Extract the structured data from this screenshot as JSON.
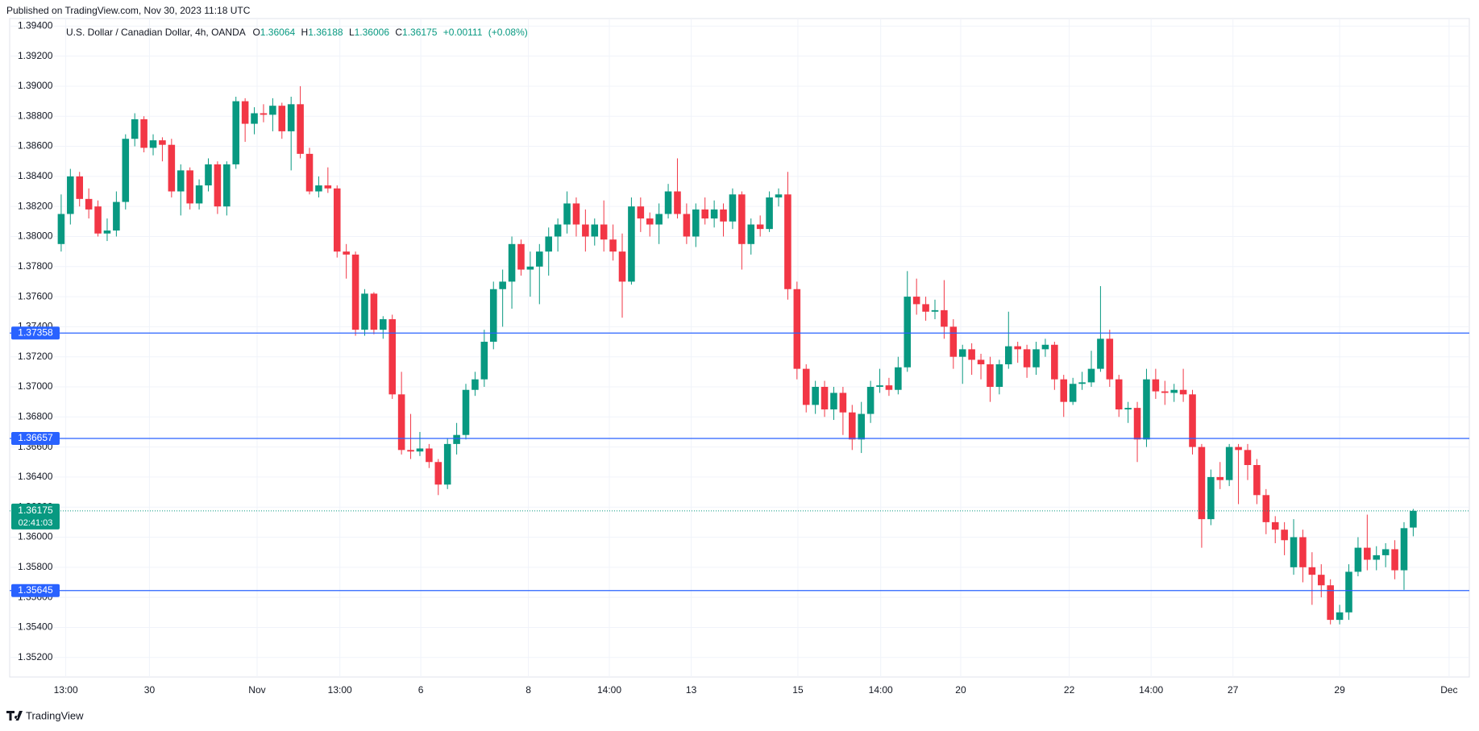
{
  "published": "Published on TradingView.com, Nov 30, 2023 11:18 UTC",
  "brand": "TradingView",
  "chart_data": {
    "type": "candlestick",
    "legend": {
      "symbol": "U.S. Dollar / Canadian Dollar, 4h, OANDA",
      "o_label": "O",
      "open": 1.36064,
      "h_label": "H",
      "high": 1.36188,
      "l_label": "L",
      "low": 1.36006,
      "c_label": "C",
      "close": 1.36175,
      "change": "+0.00111",
      "change_pct": "(+0.08%)"
    },
    "up_color": "#089981",
    "down_color": "#f23645",
    "grid": true,
    "xlim": [
      -5.6,
      153.1
    ],
    "ylim": [
      1.3507,
      1.3945
    ],
    "xticks": [
      {
        "value": 0.5,
        "label": "13:00"
      },
      {
        "value": 9.6,
        "label": "30"
      },
      {
        "value": 21.3,
        "label": "Nov"
      },
      {
        "value": 30.3,
        "label": "13:00"
      },
      {
        "value": 39.1,
        "label": "6"
      },
      {
        "value": 50.8,
        "label": "8"
      },
      {
        "value": 59.6,
        "label": "14:00"
      },
      {
        "value": 68.5,
        "label": "13"
      },
      {
        "value": 80.1,
        "label": "15"
      },
      {
        "value": 89.1,
        "label": "14:00"
      },
      {
        "value": 97.8,
        "label": "20"
      },
      {
        "value": 109.6,
        "label": "22"
      },
      {
        "value": 118.5,
        "label": "14:00"
      },
      {
        "value": 127.4,
        "label": "27"
      },
      {
        "value": 139,
        "label": "29"
      },
      {
        "value": 150.9,
        "label": "Dec"
      }
    ],
    "yticks": [
      {
        "value": 1.394,
        "label": "1.39400"
      },
      {
        "value": 1.392,
        "label": "1.39200"
      },
      {
        "value": 1.39,
        "label": "1.39000"
      },
      {
        "value": 1.388,
        "label": "1.38800"
      },
      {
        "value": 1.386,
        "label": "1.38600"
      },
      {
        "value": 1.384,
        "label": "1.38400"
      },
      {
        "value": 1.382,
        "label": "1.38200"
      },
      {
        "value": 1.38,
        "label": "1.38000"
      },
      {
        "value": 1.378,
        "label": "1.37800"
      },
      {
        "value": 1.376,
        "label": "1.37600"
      },
      {
        "value": 1.374,
        "label": "1.37400"
      },
      {
        "value": 1.372,
        "label": "1.37200"
      },
      {
        "value": 1.37,
        "label": "1.37000"
      },
      {
        "value": 1.368,
        "label": "1.36800"
      },
      {
        "value": 1.366,
        "label": "1.36600"
      },
      {
        "value": 1.364,
        "label": "1.36400"
      },
      {
        "value": 1.362,
        "label": "1.36200"
      },
      {
        "value": 1.36,
        "label": "1.36000"
      },
      {
        "value": 1.358,
        "label": "1.35800"
      },
      {
        "value": 1.356,
        "label": "1.35600"
      },
      {
        "value": 1.354,
        "label": "1.35400"
      },
      {
        "value": 1.352,
        "label": "1.35200"
      }
    ],
    "hlines": [
      1.37358,
      1.36657,
      1.35645
    ],
    "hline_color": "#2962ff",
    "last_price": 1.36175,
    "countdown": "02:41:03",
    "ohlc": [
      [
        1.3795,
        1.3828,
        1.379,
        1.3815
      ],
      [
        1.3815,
        1.3845,
        1.3808,
        1.384
      ],
      [
        1.384,
        1.3843,
        1.382,
        1.3825
      ],
      [
        1.3825,
        1.3832,
        1.3812,
        1.3818
      ],
      [
        1.382,
        1.3824,
        1.38,
        1.3802
      ],
      [
        1.3802,
        1.3812,
        1.3797,
        1.3804
      ],
      [
        1.3804,
        1.383,
        1.38,
        1.3823
      ],
      [
        1.3823,
        1.3868,
        1.3818,
        1.3865
      ],
      [
        1.3865,
        1.3882,
        1.386,
        1.3878
      ],
      [
        1.3878,
        1.388,
        1.3856,
        1.3859
      ],
      [
        1.3859,
        1.3868,
        1.3854,
        1.3864
      ],
      [
        1.3864,
        1.3866,
        1.385,
        1.3861
      ],
      [
        1.3861,
        1.3865,
        1.3826,
        1.383
      ],
      [
        1.383,
        1.3848,
        1.3814,
        1.3844
      ],
      [
        1.3844,
        1.3846,
        1.3818,
        1.3822
      ],
      [
        1.3822,
        1.3838,
        1.3818,
        1.3834
      ],
      [
        1.3834,
        1.3852,
        1.383,
        1.3848
      ],
      [
        1.3848,
        1.385,
        1.3815,
        1.382
      ],
      [
        1.382,
        1.385,
        1.3814,
        1.3848
      ],
      [
        1.3848,
        1.3893,
        1.3845,
        1.389
      ],
      [
        1.389,
        1.3892,
        1.3863,
        1.3875
      ],
      [
        1.3875,
        1.3886,
        1.3868,
        1.3882
      ],
      [
        1.3882,
        1.3888,
        1.3876,
        1.3881
      ],
      [
        1.3881,
        1.3892,
        1.387,
        1.3887
      ],
      [
        1.3887,
        1.3889,
        1.3865,
        1.387
      ],
      [
        1.387,
        1.3893,
        1.3844,
        1.3888
      ],
      [
        1.3888,
        1.39,
        1.3852,
        1.3855
      ],
      [
        1.3855,
        1.3859,
        1.3828,
        1.383
      ],
      [
        1.383,
        1.384,
        1.3826,
        1.3834
      ],
      [
        1.3834,
        1.3846,
        1.3829,
        1.3832
      ],
      [
        1.3832,
        1.3834,
        1.3786,
        1.379
      ],
      [
        1.379,
        1.3795,
        1.3772,
        1.3788
      ],
      [
        1.3788,
        1.379,
        1.3734,
        1.3738
      ],
      [
        1.3738,
        1.3765,
        1.3734,
        1.3762
      ],
      [
        1.3762,
        1.3763,
        1.3735,
        1.3738
      ],
      [
        1.3738,
        1.3747,
        1.3732,
        1.3745
      ],
      [
        1.3745,
        1.3748,
        1.3692,
        1.3695
      ],
      [
        1.3695,
        1.371,
        1.3655,
        1.3658
      ],
      [
        1.3658,
        1.3682,
        1.3652,
        1.3657
      ],
      [
        1.3657,
        1.367,
        1.3654,
        1.3659
      ],
      [
        1.3659,
        1.3662,
        1.3646,
        1.365
      ],
      [
        1.365,
        1.3652,
        1.3628,
        1.3635
      ],
      [
        1.3635,
        1.3666,
        1.3632,
        1.3662
      ],
      [
        1.3662,
        1.3676,
        1.3655,
        1.3668
      ],
      [
        1.3668,
        1.3702,
        1.3665,
        1.3698
      ],
      [
        1.3698,
        1.371,
        1.3694,
        1.3705
      ],
      [
        1.3705,
        1.3738,
        1.37,
        1.373
      ],
      [
        1.373,
        1.377,
        1.3725,
        1.3765
      ],
      [
        1.3765,
        1.3778,
        1.374,
        1.377
      ],
      [
        1.377,
        1.38,
        1.3752,
        1.3795
      ],
      [
        1.3795,
        1.3798,
        1.3774,
        1.3778
      ],
      [
        1.3778,
        1.379,
        1.376,
        1.378
      ],
      [
        1.378,
        1.3795,
        1.3755,
        1.379
      ],
      [
        1.379,
        1.3806,
        1.3774,
        1.38
      ],
      [
        1.38,
        1.3812,
        1.379,
        1.3808
      ],
      [
        1.3808,
        1.383,
        1.3802,
        1.3822
      ],
      [
        1.3822,
        1.3826,
        1.38,
        1.3808
      ],
      [
        1.3808,
        1.3818,
        1.379,
        1.38
      ],
      [
        1.38,
        1.3812,
        1.3794,
        1.3808
      ],
      [
        1.3808,
        1.3824,
        1.379,
        1.3798
      ],
      [
        1.3798,
        1.3808,
        1.3784,
        1.379
      ],
      [
        1.379,
        1.3802,
        1.3746,
        1.377
      ],
      [
        1.377,
        1.3826,
        1.3768,
        1.382
      ],
      [
        1.382,
        1.3826,
        1.3803,
        1.3812
      ],
      [
        1.3812,
        1.3816,
        1.38,
        1.3808
      ],
      [
        1.3808,
        1.3822,
        1.3795,
        1.3815
      ],
      [
        1.3815,
        1.3835,
        1.3812,
        1.383
      ],
      [
        1.383,
        1.3852,
        1.3812,
        1.3815
      ],
      [
        1.3815,
        1.3822,
        1.3795,
        1.38
      ],
      [
        1.38,
        1.3822,
        1.3793,
        1.3818
      ],
      [
        1.3818,
        1.3826,
        1.3808,
        1.3812
      ],
      [
        1.3812,
        1.3824,
        1.3806,
        1.3818
      ],
      [
        1.3818,
        1.3822,
        1.38,
        1.381
      ],
      [
        1.381,
        1.3832,
        1.3805,
        1.3828
      ],
      [
        1.3828,
        1.383,
        1.3778,
        1.3795
      ],
      [
        1.3795,
        1.3812,
        1.3788,
        1.3808
      ],
      [
        1.3808,
        1.3814,
        1.38,
        1.3805
      ],
      [
        1.3805,
        1.383,
        1.3803,
        1.3826
      ],
      [
        1.3826,
        1.3832,
        1.382,
        1.3828
      ],
      [
        1.3828,
        1.3843,
        1.3758,
        1.3765
      ],
      [
        1.3765,
        1.377,
        1.3705,
        1.3712
      ],
      [
        1.3712,
        1.3715,
        1.3683,
        1.3688
      ],
      [
        1.3688,
        1.3704,
        1.3682,
        1.37
      ],
      [
        1.37,
        1.3704,
        1.368,
        1.3685
      ],
      [
        1.3685,
        1.37,
        1.3678,
        1.3696
      ],
      [
        1.3696,
        1.37,
        1.3668,
        1.3683
      ],
      [
        1.3683,
        1.3688,
        1.3658,
        1.3665
      ],
      [
        1.3665,
        1.369,
        1.3656,
        1.3682
      ],
      [
        1.3682,
        1.3704,
        1.3676,
        1.37
      ],
      [
        1.37,
        1.3712,
        1.3696,
        1.3701
      ],
      [
        1.3701,
        1.3706,
        1.3694,
        1.3698
      ],
      [
        1.3698,
        1.372,
        1.3695,
        1.3713
      ],
      [
        1.3713,
        1.3777,
        1.371,
        1.376
      ],
      [
        1.376,
        1.3772,
        1.3748,
        1.3755
      ],
      [
        1.3755,
        1.376,
        1.3744,
        1.375
      ],
      [
        1.375,
        1.3758,
        1.3745,
        1.3751
      ],
      [
        1.3751,
        1.3771,
        1.3732,
        1.374
      ],
      [
        1.374,
        1.3745,
        1.3712,
        1.372
      ],
      [
        1.372,
        1.3728,
        1.3702,
        1.3725
      ],
      [
        1.3725,
        1.3729,
        1.3708,
        1.3718
      ],
      [
        1.3718,
        1.3722,
        1.3705,
        1.3715
      ],
      [
        1.3715,
        1.372,
        1.369,
        1.37
      ],
      [
        1.37,
        1.3718,
        1.3695,
        1.3715
      ],
      [
        1.3715,
        1.375,
        1.3712,
        1.3727
      ],
      [
        1.3727,
        1.373,
        1.3716,
        1.3725
      ],
      [
        1.3725,
        1.3728,
        1.3706,
        1.3713
      ],
      [
        1.3713,
        1.373,
        1.3708,
        1.3725
      ],
      [
        1.3725,
        1.3732,
        1.372,
        1.3728
      ],
      [
        1.3728,
        1.373,
        1.3698,
        1.3705
      ],
      [
        1.3705,
        1.3708,
        1.368,
        1.369
      ],
      [
        1.369,
        1.3706,
        1.3688,
        1.3702
      ],
      [
        1.3702,
        1.371,
        1.3698,
        1.3703
      ],
      [
        1.3703,
        1.3724,
        1.37,
        1.3712
      ],
      [
        1.3712,
        1.3767,
        1.371,
        1.3732
      ],
      [
        1.3732,
        1.3738,
        1.37,
        1.3705
      ],
      [
        1.3705,
        1.3708,
        1.368,
        1.3685
      ],
      [
        1.3685,
        1.369,
        1.3676,
        1.3686
      ],
      [
        1.3686,
        1.369,
        1.365,
        1.3665
      ],
      [
        1.3665,
        1.3712,
        1.366,
        1.3705
      ],
      [
        1.3705,
        1.3712,
        1.3692,
        1.3697
      ],
      [
        1.3697,
        1.3704,
        1.3688,
        1.3696
      ],
      [
        1.3696,
        1.3702,
        1.369,
        1.3698
      ],
      [
        1.3698,
        1.3712,
        1.369,
        1.3695
      ],
      [
        1.3695,
        1.3698,
        1.3655,
        1.366
      ],
      [
        1.366,
        1.3662,
        1.3593,
        1.3612
      ],
      [
        1.3612,
        1.3645,
        1.3608,
        1.364
      ],
      [
        1.364,
        1.365,
        1.3632,
        1.3638
      ],
      [
        1.3638,
        1.3662,
        1.3634,
        1.366
      ],
      [
        1.366,
        1.3662,
        1.3622,
        1.3658
      ],
      [
        1.3658,
        1.3662,
        1.3638,
        1.3648
      ],
      [
        1.3648,
        1.3652,
        1.3622,
        1.3628
      ],
      [
        1.3628,
        1.3632,
        1.3602,
        1.361
      ],
      [
        1.361,
        1.3614,
        1.3596,
        1.3605
      ],
      [
        1.3605,
        1.361,
        1.3588,
        1.3598
      ],
      [
        1.358,
        1.3612,
        1.3575,
        1.36
      ],
      [
        1.36,
        1.3605,
        1.357,
        1.358
      ],
      [
        1.358,
        1.359,
        1.3555,
        1.3575
      ],
      [
        1.3575,
        1.3582,
        1.356,
        1.3568
      ],
      [
        1.3568,
        1.3572,
        1.3542,
        1.3545
      ],
      [
        1.3545,
        1.3555,
        1.3542,
        1.355
      ],
      [
        1.355,
        1.3582,
        1.3545,
        1.3577
      ],
      [
        1.3577,
        1.36,
        1.3574,
        1.3593
      ],
      [
        1.3593,
        1.3615,
        1.3578,
        1.3585
      ],
      [
        1.3585,
        1.3594,
        1.3578,
        1.3588
      ],
      [
        1.3588,
        1.3596,
        1.358,
        1.3592
      ],
      [
        1.3592,
        1.3598,
        1.3572,
        1.3578
      ],
      [
        1.3578,
        1.361,
        1.3565,
        1.3606
      ],
      [
        1.36064,
        1.36188,
        1.36006,
        1.36175
      ]
    ]
  }
}
